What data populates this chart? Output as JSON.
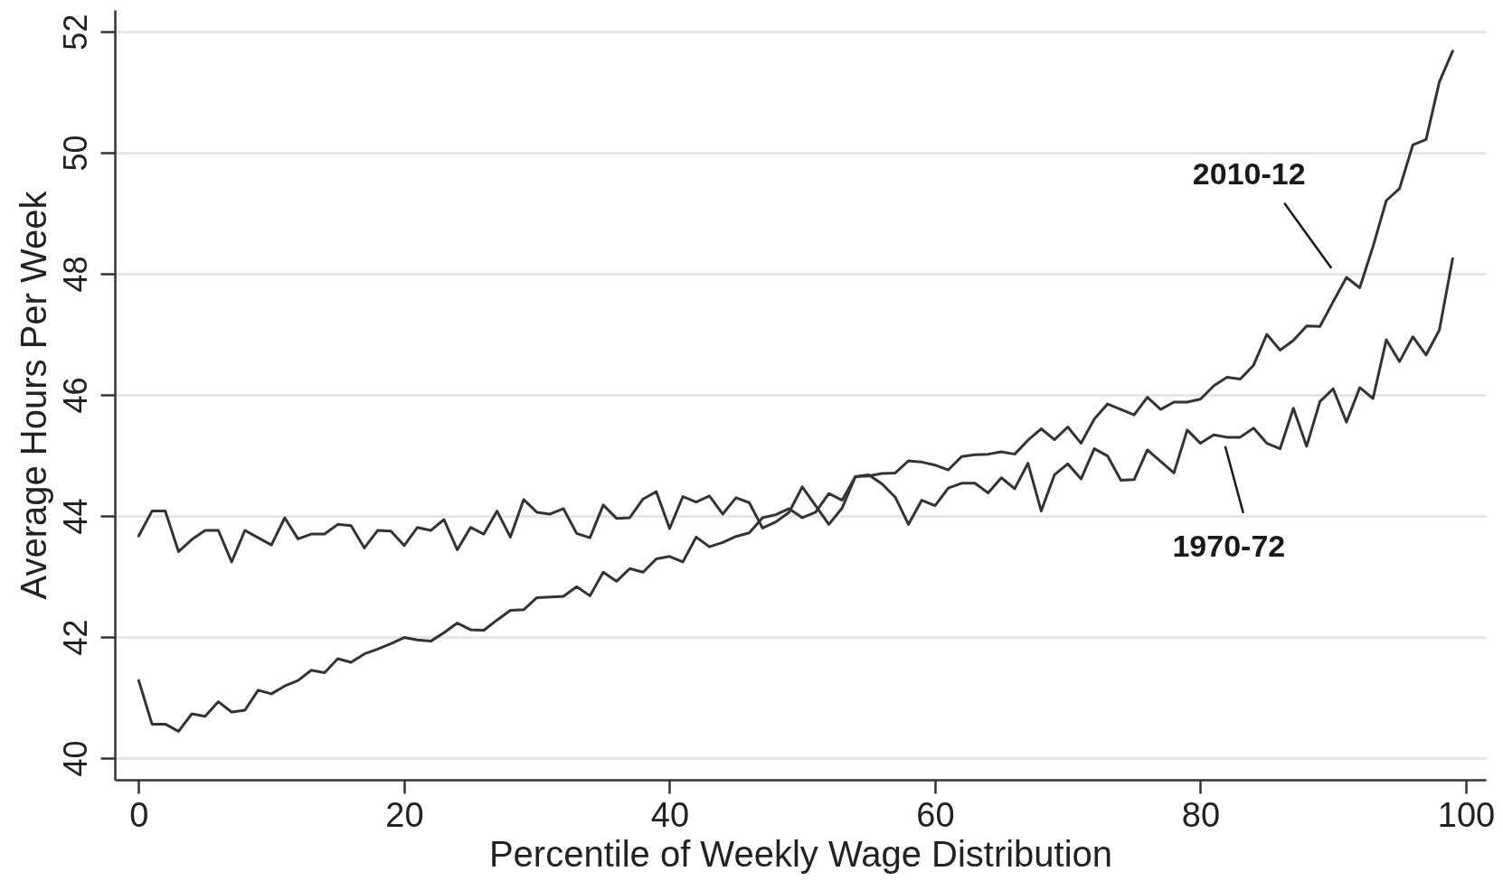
{
  "chart_data": {
    "type": "line",
    "xlabel": "Percentile of Weekly Wage Distribution",
    "ylabel": "Average Hours Per Week",
    "x": [
      0,
      1,
      2,
      3,
      4,
      5,
      6,
      7,
      8,
      9,
      10,
      11,
      12,
      13,
      14,
      15,
      16,
      17,
      18,
      19,
      20,
      21,
      22,
      23,
      24,
      25,
      26,
      27,
      28,
      29,
      30,
      31,
      32,
      33,
      34,
      35,
      36,
      37,
      38,
      39,
      40,
      41,
      42,
      43,
      44,
      45,
      46,
      47,
      48,
      49,
      50,
      51,
      52,
      53,
      54,
      55,
      56,
      57,
      58,
      59,
      60,
      61,
      62,
      63,
      64,
      65,
      66,
      67,
      68,
      69,
      70,
      71,
      72,
      73,
      74,
      75,
      76,
      77,
      78,
      79,
      80,
      81,
      82,
      83,
      84,
      85,
      86,
      87,
      88,
      89,
      90,
      91,
      92,
      93,
      94,
      95,
      96,
      97,
      98,
      99
    ],
    "series": [
      {
        "name": "1970-72",
        "color": "#333333",
        "values": [
          43.67,
          44.08,
          44.08,
          43.41,
          43.61,
          43.76,
          43.76,
          43.24,
          43.76,
          43.64,
          43.52,
          43.97,
          43.62,
          43.7,
          43.7,
          43.86,
          43.84,
          43.47,
          43.76,
          43.75,
          43.51,
          43.81,
          43.76,
          43.94,
          43.44,
          43.81,
          43.7,
          44.08,
          43.65,
          44.27,
          44.06,
          44.03,
          44.12,
          43.71,
          43.64,
          44.18,
          43.96,
          43.97,
          44.28,
          44.4,
          43.79,
          44.32,
          44.23,
          44.33,
          44.03,
          44.3,
          44.22,
          43.8,
          43.9,
          44.06,
          44.48,
          44.17,
          43.86,
          44.13,
          44.65,
          44.68,
          44.53,
          44.31,
          43.86,
          44.26,
          44.17,
          44.46,
          44.54,
          44.54,
          44.38,
          44.63,
          44.45,
          44.87,
          44.08,
          44.68,
          44.86,
          44.61,
          45.11,
          44.99,
          44.59,
          44.6,
          45.09,
          44.9,
          44.71,
          45.42,
          45.2,
          45.34,
          45.3,
          45.3,
          45.45,
          45.2,
          45.11,
          45.78,
          45.15,
          45.89,
          46.1,
          45.55,
          46.12,
          45.94,
          46.91,
          46.55,
          46.96,
          46.66,
          47.07,
          48.25
        ]
      },
      {
        "name": "2010-12",
        "color": "#333333",
        "values": [
          41.28,
          40.56,
          40.56,
          40.44,
          40.73,
          40.69,
          40.93,
          40.76,
          40.79,
          41.12,
          41.06,
          41.19,
          41.28,
          41.45,
          41.41,
          41.64,
          41.58,
          41.72,
          41.8,
          41.89,
          41.99,
          41.95,
          41.93,
          42.07,
          42.23,
          42.12,
          42.11,
          42.28,
          42.44,
          42.45,
          42.65,
          42.66,
          42.67,
          42.83,
          42.68,
          43.07,
          42.92,
          43.13,
          43.07,
          43.29,
          43.33,
          43.24,
          43.65,
          43.49,
          43.56,
          43.66,
          43.72,
          43.97,
          44.02,
          44.12,
          43.97,
          44.06,
          44.37,
          44.26,
          44.65,
          44.66,
          44.7,
          44.71,
          44.91,
          44.89,
          44.84,
          44.76,
          44.98,
          45.01,
          45.02,
          45.06,
          45.02,
          45.25,
          45.44,
          45.26,
          45.47,
          45.2,
          45.6,
          45.85,
          45.76,
          45.67,
          45.96,
          45.76,
          45.88,
          45.88,
          45.93,
          46.15,
          46.29,
          46.26,
          46.49,
          47.0,
          46.74,
          46.9,
          47.14,
          47.13,
          47.54,
          47.94,
          47.77,
          48.45,
          49.21,
          49.41,
          50.13,
          50.22,
          51.17,
          51.68
        ]
      }
    ],
    "xlim": [
      -1.8,
      101.5
    ],
    "ylim": [
      39.64,
      52.36
    ],
    "xticks": [
      0,
      20,
      40,
      60,
      80,
      100
    ],
    "yticks": [
      40,
      42,
      44,
      46,
      48,
      50,
      52
    ],
    "grid": "y"
  }
}
